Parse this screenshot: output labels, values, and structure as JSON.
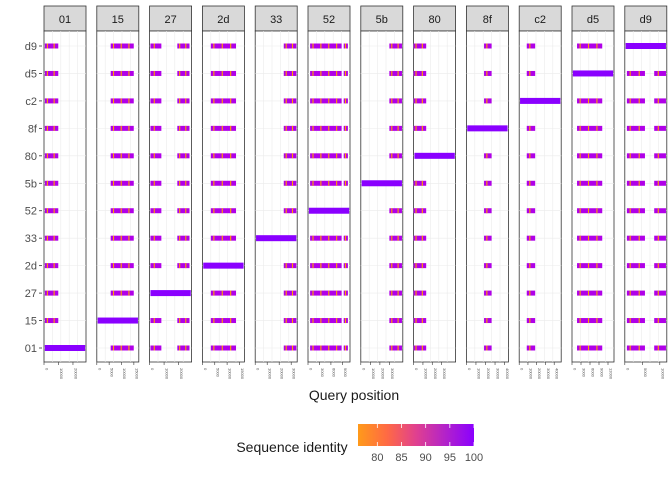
{
  "chart_data": {
    "type": "faceted-segment-plot",
    "xlabel": "Query position",
    "ylabel": "",
    "facets": [
      "01",
      "15",
      "27",
      "2d",
      "33",
      "52",
      "5b",
      "80",
      "8f",
      "c2",
      "d5",
      "d9"
    ],
    "rows": [
      "d9",
      "d5",
      "c2",
      "8f",
      "80",
      "5b",
      "52",
      "33",
      "2d",
      "27",
      "15",
      "01"
    ],
    "facet_xlim": [
      [
        0,
        29000
      ],
      [
        0,
        17000
      ],
      [
        0,
        29000
      ],
      [
        0,
        17000
      ],
      [
        0,
        35000
      ],
      [
        0,
        11000
      ],
      [
        0,
        44000
      ],
      [
        0,
        45000
      ],
      [
        0,
        44000
      ],
      [
        0,
        48000
      ],
      [
        0,
        14000
      ],
      [
        0,
        12000
      ]
    ],
    "facet_ticks": [
      [
        "0",
        "10000",
        "20000"
      ],
      [
        "0",
        "5000",
        "10000",
        "15000"
      ],
      [
        "0",
        "10000",
        "20000"
      ],
      [
        "0",
        "5000",
        "10000",
        "15000"
      ],
      [
        "0",
        "10000",
        "20000",
        "30000"
      ],
      [
        "0",
        "3000",
        "6000",
        "9000"
      ],
      [
        "0",
        "10000",
        "20000",
        "30000"
      ],
      [
        "0",
        "10000",
        "20000",
        "30000"
      ],
      [
        "0",
        "10000",
        "20000",
        "30000",
        "40000"
      ],
      [
        "0",
        "10000",
        "20000",
        "30000",
        "40000"
      ],
      [
        "0",
        "3000",
        "6000",
        "9000",
        "12000"
      ],
      [
        "0",
        "5000",
        "10000"
      ]
    ],
    "segments_normalized_to_facet_span": {
      "01": {
        "self": [
          0.02,
          0.98
        ],
        "others": [
          [
            0.02,
            0.34
          ]
        ]
      },
      "15": {
        "self": [
          0.02,
          0.98
        ],
        "others": [
          [
            0.33,
            0.88
          ]
        ]
      },
      "27": {
        "self": [
          0.02,
          0.98
        ],
        "others": [
          [
            0.02,
            0.28
          ],
          [
            0.66,
            0.95
          ]
        ]
      },
      "2d": {
        "self": [
          0.02,
          0.98
        ],
        "others": [
          [
            0.2,
            0.8
          ]
        ]
      },
      "33": {
        "self": [
          0.02,
          0.98
        ],
        "others": [
          [
            0.68,
            0.98
          ]
        ]
      },
      "52": {
        "self": [
          0.02,
          0.98
        ],
        "others": [
          [
            0.05,
            0.8
          ],
          [
            0.85,
            0.95
          ]
        ]
      },
      "5b": {
        "self": [
          0.02,
          0.98
        ],
        "others": [
          [
            0.68,
            0.98
          ]
        ]
      },
      "80": {
        "self": [
          0.02,
          0.98
        ],
        "others": [
          [
            0.0,
            0.3
          ]
        ]
      },
      "8f": {
        "self": [
          0.02,
          0.98
        ],
        "others": [
          [
            0.42,
            0.6
          ]
        ]
      },
      "c2": {
        "self": [
          0.02,
          0.98
        ],
        "others": [
          [
            0.18,
            0.38
          ]
        ]
      },
      "d5": {
        "self": [
          0.02,
          0.98
        ],
        "others": [
          [
            0.12,
            0.72
          ]
        ]
      },
      "d9": {
        "self": [
          0.02,
          0.98
        ],
        "others": [
          [
            0.05,
            0.48
          ],
          [
            0.7,
            0.98
          ]
        ]
      }
    },
    "legend": {
      "title": "Sequence identity",
      "position": "bottom",
      "min": 76,
      "max": 100,
      "ticks": [
        "80",
        "85",
        "90",
        "95",
        "100"
      ],
      "colors": [
        "#ff9a1a",
        "#ff6a44",
        "#e0408f",
        "#b323c9",
        "#8a00ff"
      ]
    },
    "colors": {
      "panel_background": "#ffffff",
      "panel_border": "#333333",
      "strip_fill": "#d9d9d9",
      "grid": "#ebebeb",
      "segment_orange": "#ffa000",
      "segment_purple": "#b000e8",
      "self_purple": "#8a00ff"
    }
  }
}
